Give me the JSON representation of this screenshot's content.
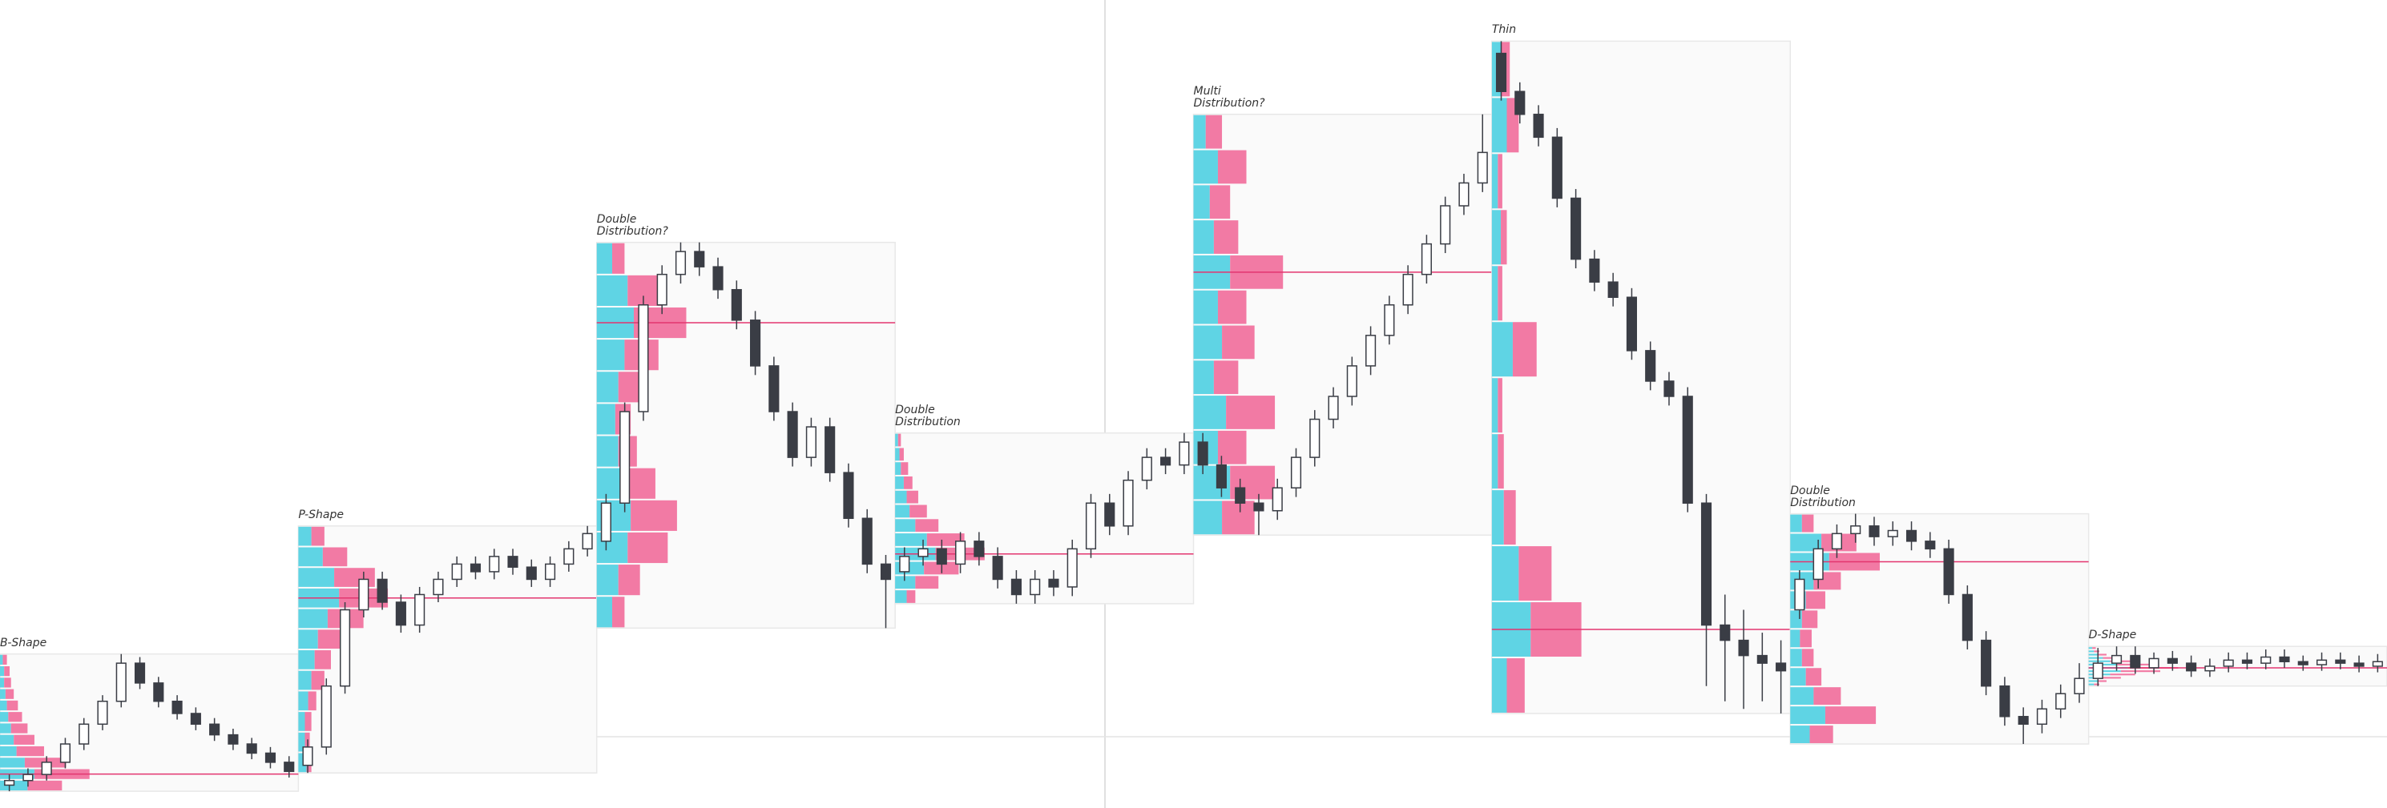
{
  "chart_data": {
    "type": "candlestick",
    "ylim": [
      0,
      530
    ],
    "candle_up_color": "#ffffff",
    "candle_down_color": "#3a3d45",
    "candle_outline_color": "#3a3d45",
    "profile_up_color": "#5fd4e4",
    "profile_down_color": "#f27aa4",
    "poc_color": "#e3356f",
    "sections": [
      {
        "label": "B-Shape",
        "open": [
          15,
          18,
          22,
          30,
          42,
          55,
          70,
          95,
          82,
          70,
          62,
          55,
          48,
          42,
          36,
          30
        ],
        "high": [
          22,
          26,
          34,
          46,
          59,
          74,
          101,
          99,
          86,
          74,
          66,
          59,
          52,
          46,
          40,
          34
        ],
        "low": [
          11,
          14,
          18,
          26,
          38,
          51,
          66,
          78,
          66,
          58,
          51,
          44,
          38,
          32,
          26,
          20
        ],
        "close": [
          18,
          22,
          30,
          42,
          55,
          70,
          95,
          82,
          70,
          62,
          55,
          48,
          42,
          36,
          30,
          24
        ],
        "profile_up": [
          20,
          25,
          18,
          12,
          10,
          8,
          6,
          5,
          4,
          3,
          3,
          2
        ],
        "profile_down": [
          25,
          40,
          30,
          20,
          15,
          12,
          10,
          8,
          6,
          5,
          4,
          3
        ]
      },
      {
        "label": "P-Shape",
        "open": [
          28,
          40,
          80,
          130,
          150,
          135,
          120,
          140,
          150,
          160,
          155,
          165,
          158,
          150,
          160,
          170
        ],
        "high": [
          45,
          85,
          135,
          155,
          155,
          140,
          145,
          155,
          165,
          165,
          170,
          170,
          163,
          165,
          175,
          185
        ],
        "low": [
          23,
          35,
          75,
          125,
          130,
          115,
          115,
          135,
          145,
          150,
          150,
          153,
          145,
          145,
          155,
          165
        ],
        "close": [
          40,
          80,
          130,
          150,
          135,
          120,
          140,
          150,
          160,
          155,
          165,
          158,
          150,
          160,
          170,
          180
        ],
        "profile_up": [
          5,
          4,
          4,
          6,
          8,
          10,
          12,
          18,
          25,
          22,
          15,
          8
        ],
        "profile_down": [
          3,
          3,
          4,
          5,
          8,
          10,
          14,
          22,
          30,
          25,
          15,
          8
        ]
      },
      {
        "label": "Double Distribution?",
        "open": [
          175,
          200,
          260,
          330,
          350,
          365,
          355,
          340,
          320,
          290,
          260,
          230,
          250,
          220,
          190,
          160
        ],
        "high": [
          206,
          266,
          336,
          356,
          371,
          371,
          361,
          346,
          326,
          296,
          266,
          256,
          256,
          226,
          196,
          166
        ],
        "low": [
          169,
          194,
          254,
          324,
          344,
          349,
          334,
          314,
          284,
          254,
          224,
          224,
          214,
          184,
          154,
          118
        ],
        "close": [
          200,
          260,
          330,
          350,
          365,
          355,
          340,
          320,
          290,
          260,
          230,
          250,
          220,
          190,
          160,
          150
        ],
        "profile_up": [
          10,
          14,
          20,
          22,
          18,
          14,
          12,
          14,
          18,
          24,
          20,
          10
        ],
        "profile_down": [
          8,
          14,
          26,
          30,
          20,
          12,
          10,
          14,
          22,
          34,
          22,
          8
        ]
      },
      {
        "label": "Double Distribution",
        "open": [
          155,
          165,
          170,
          160,
          175,
          165,
          150,
          140,
          150,
          145,
          170,
          200,
          185,
          215,
          230,
          225
        ],
        "high": [
          171,
          176,
          176,
          181,
          181,
          171,
          156,
          156,
          156,
          176,
          206,
          206,
          221,
          236,
          236,
          246
        ],
        "low": [
          149,
          159,
          154,
          154,
          159,
          144,
          134,
          134,
          139,
          139,
          164,
          179,
          179,
          209,
          219,
          219
        ],
        "close": [
          165,
          170,
          160,
          175,
          165,
          150,
          140,
          150,
          145,
          170,
          200,
          185,
          215,
          230,
          225,
          240
        ],
        "profile_up": [
          8,
          14,
          20,
          28,
          22,
          14,
          10,
          8,
          6,
          4,
          3,
          2
        ],
        "profile_down": [
          6,
          16,
          24,
          34,
          26,
          16,
          12,
          8,
          6,
          5,
          3,
          2
        ]
      },
      {
        "label": "Multi Distribution?",
        "open": [
          240,
          225,
          210,
          200,
          195,
          210,
          230,
          255,
          270,
          290,
          310,
          330,
          350,
          370,
          395,
          410
        ],
        "high": [
          246,
          231,
          216,
          206,
          216,
          236,
          261,
          276,
          296,
          316,
          336,
          356,
          376,
          401,
          416,
          455
        ],
        "low": [
          219,
          204,
          194,
          179,
          189,
          204,
          224,
          249,
          264,
          284,
          304,
          324,
          344,
          364,
          389,
          404
        ],
        "close": [
          225,
          210,
          200,
          195,
          210,
          230,
          255,
          270,
          290,
          310,
          330,
          350,
          370,
          395,
          410,
          430
        ],
        "profile_up": [
          14,
          18,
          12,
          16,
          10,
          14,
          12,
          18,
          10,
          8,
          12,
          6
        ],
        "profile_down": [
          16,
          22,
          14,
          24,
          12,
          16,
          14,
          26,
          12,
          10,
          14,
          8
        ]
      },
      {
        "label": "Thin",
        "open": [
          495,
          470,
          455,
          440,
          400,
          360,
          345,
          335,
          300,
          280,
          270,
          200,
          120,
          110,
          100,
          95
        ],
        "high": [
          503,
          476,
          461,
          446,
          406,
          366,
          351,
          341,
          306,
          286,
          276,
          206,
          140,
          130,
          115,
          110
        ],
        "low": [
          464,
          449,
          434,
          394,
          354,
          339,
          329,
          294,
          274,
          264,
          194,
          80,
          70,
          65,
          70,
          62
        ],
        "close": [
          470,
          455,
          440,
          400,
          360,
          345,
          335,
          300,
          280,
          270,
          200,
          120,
          110,
          100,
          95,
          90
        ],
        "profile_up": [
          10,
          26,
          18,
          8,
          4,
          4,
          14,
          4,
          6,
          4,
          10,
          6
        ],
        "profile_down": [
          12,
          34,
          22,
          8,
          4,
          3,
          16,
          3,
          4,
          3,
          8,
          6
        ]
      },
      {
        "label": "Double Distribution",
        "open": [
          130,
          150,
          170,
          180,
          185,
          178,
          182,
          175,
          170,
          140,
          110,
          80,
          60,
          55,
          65,
          75
        ],
        "high": [
          156,
          176,
          186,
          193,
          191,
          188,
          188,
          181,
          176,
          146,
          116,
          86,
          66,
          71,
          81,
          95
        ],
        "low": [
          124,
          144,
          164,
          174,
          172,
          172,
          169,
          164,
          134,
          104,
          74,
          54,
          42,
          49,
          59,
          69
        ],
        "close": [
          150,
          170,
          180,
          185,
          178,
          182,
          175,
          170,
          140,
          110,
          80,
          60,
          55,
          65,
          75,
          85
        ],
        "profile_up": [
          10,
          18,
          12,
          8,
          6,
          5,
          6,
          8,
          12,
          20,
          16,
          6
        ],
        "profile_down": [
          12,
          26,
          14,
          8,
          6,
          6,
          8,
          10,
          14,
          26,
          18,
          6
        ]
      },
      {
        "label": "D-Shape",
        "open": [
          85,
          95,
          100,
          92,
          98,
          95,
          90,
          93,
          97,
          95,
          99,
          96,
          94,
          97,
          95,
          93
        ],
        "high": [
          105,
          106,
          106,
          102,
          103,
          100,
          98,
          102,
          102,
          104,
          104,
          100,
          102,
          102,
          100,
          101
        ],
        "low": [
          80,
          90,
          88,
          88,
          90,
          86,
          86,
          89,
          91,
          91,
          92,
          90,
          90,
          91,
          89,
          89
        ],
        "close": [
          95,
          100,
          92,
          98,
          95,
          90,
          93,
          97,
          95,
          99,
          96,
          94,
          97,
          95,
          93,
          96
        ],
        "profile_up": [
          3,
          5,
          8,
          12,
          18,
          22,
          16,
          12,
          8,
          5,
          3,
          2
        ],
        "profile_down": [
          3,
          5,
          10,
          14,
          22,
          28,
          18,
          12,
          8,
          5,
          3,
          2
        ]
      }
    ]
  }
}
